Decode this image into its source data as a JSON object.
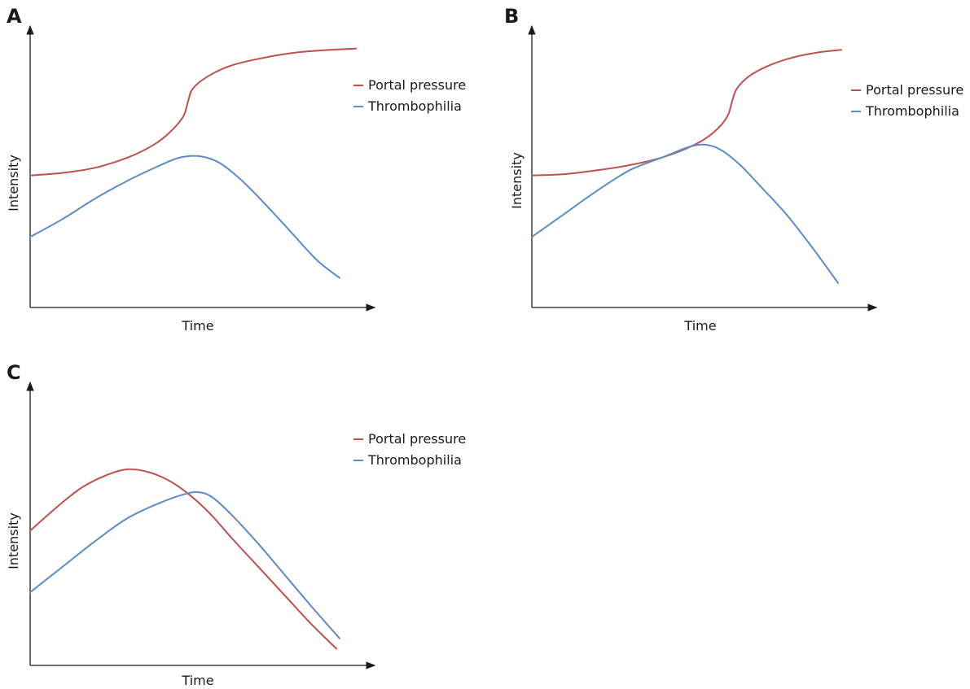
{
  "colors": {
    "portal": "#c0504d",
    "thrombo": "#5b8cc8",
    "axis": "#1a1a1a"
  },
  "chart_data": [
    {
      "type": "line",
      "panel": "A",
      "xlabel": "Time",
      "ylabel": "Intensity",
      "xlim": [
        0,
        100
      ],
      "ylim": [
        0,
        100
      ],
      "legend_position": "top-right",
      "series": [
        {
          "name": "Portal pressure",
          "color": "#c0504d",
          "x": [
            0,
            10,
            20,
            30,
            38,
            43,
            47,
            48.5,
            50,
            55,
            62,
            72,
            82,
            92,
            100
          ],
          "y": [
            49,
            50,
            52,
            56,
            61,
            66,
            72,
            78,
            83,
            88,
            92,
            95,
            97,
            98,
            98.5
          ]
        },
        {
          "name": "Thrombophilia",
          "color": "#5b8cc8",
          "x": [
            0,
            10,
            20,
            30,
            40,
            46,
            52,
            58,
            65,
            72,
            80,
            88,
            95
          ],
          "y": [
            25,
            32,
            40,
            47,
            53,
            56,
            56.5,
            54,
            47,
            38,
            27,
            16,
            9
          ]
        }
      ]
    },
    {
      "type": "line",
      "panel": "B",
      "xlabel": "Time",
      "ylabel": "Intensity",
      "xlim": [
        0,
        100
      ],
      "ylim": [
        0,
        100
      ],
      "legend_position": "top-right",
      "series": [
        {
          "name": "Portal pressure",
          "color": "#c0504d",
          "x": [
            0,
            10,
            20,
            30,
            40,
            50,
            56,
            60,
            61.5,
            63,
            67,
            73,
            80,
            88,
            95
          ],
          "y": [
            49,
            49.5,
            51,
            53,
            56,
            61,
            66,
            72,
            78,
            83,
            88,
            92,
            95,
            97,
            98
          ]
        },
        {
          "name": "Thrombophilia",
          "color": "#5b8cc8",
          "x": [
            0,
            10,
            20,
            30,
            40,
            48,
            53,
            58,
            64,
            70,
            78,
            86,
            94
          ],
          "y": [
            25,
            34,
            43,
            51,
            56,
            60,
            61,
            59,
            53,
            45,
            34,
            21,
            7
          ]
        }
      ]
    },
    {
      "type": "line",
      "panel": "C",
      "xlabel": "Time",
      "ylabel": "Intensity",
      "xlim": [
        0,
        100
      ],
      "ylim": [
        0,
        100
      ],
      "legend_position": "top-right",
      "series": [
        {
          "name": "Portal pressure",
          "color": "#c0504d",
          "x": [
            0,
            8,
            16,
            24,
            30,
            36,
            42,
            48,
            55,
            62,
            70,
            78,
            86,
            94
          ],
          "y": [
            50,
            59,
            67,
            72,
            74,
            73,
            70,
            65,
            57,
            47,
            36,
            25,
            14,
            4
          ]
        },
        {
          "name": "Thrombophilia",
          "color": "#5b8cc8",
          "x": [
            0,
            10,
            20,
            30,
            40,
            48,
            52,
            56,
            62,
            70,
            78,
            86,
            95
          ],
          "y": [
            26,
            36,
            46,
            55,
            61,
            64.5,
            65,
            63,
            56,
            45,
            33,
            21,
            8
          ]
        }
      ]
    }
  ]
}
